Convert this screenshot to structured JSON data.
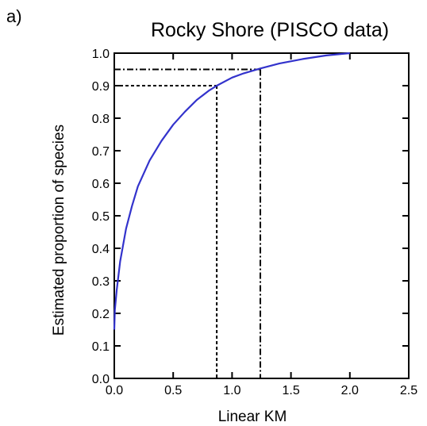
{
  "panel_label": "a)",
  "chart_data": {
    "type": "line",
    "title": "Rocky Shore (PISCO data)",
    "xlabel": "Linear KM",
    "ylabel": "Estimated proportion of species",
    "xlim": [
      0.0,
      2.5
    ],
    "ylim": [
      0.0,
      1.0
    ],
    "xticks": [
      "0.0",
      "0.5",
      "1.0",
      "1.5",
      "2.0",
      "2.5"
    ],
    "yticks": [
      "0.0",
      "0.1",
      "0.2",
      "0.3",
      "0.4",
      "0.5",
      "0.6",
      "0.7",
      "0.8",
      "0.9",
      "1.0"
    ],
    "grid": false,
    "legend": "none",
    "series": [
      {
        "color": "#3333cc",
        "x": [
          0.0,
          0.005,
          0.02,
          0.05,
          0.1,
          0.15,
          0.2,
          0.3,
          0.4,
          0.5,
          0.6,
          0.7,
          0.8,
          0.87,
          1.0,
          1.1,
          1.24,
          1.4,
          1.6,
          1.8,
          2.0
        ],
        "y": [
          0.15,
          0.21,
          0.27,
          0.36,
          0.46,
          0.53,
          0.59,
          0.67,
          0.73,
          0.78,
          0.82,
          0.856,
          0.884,
          0.9,
          0.925,
          0.938,
          0.953,
          0.968,
          0.982,
          0.993,
          1.0
        ]
      }
    ],
    "reference_lines": [
      {
        "y": 0.9,
        "x": 0.87,
        "style": "dashed"
      },
      {
        "y": 0.95,
        "x": 1.24,
        "style": "dash-dot"
      }
    ]
  }
}
